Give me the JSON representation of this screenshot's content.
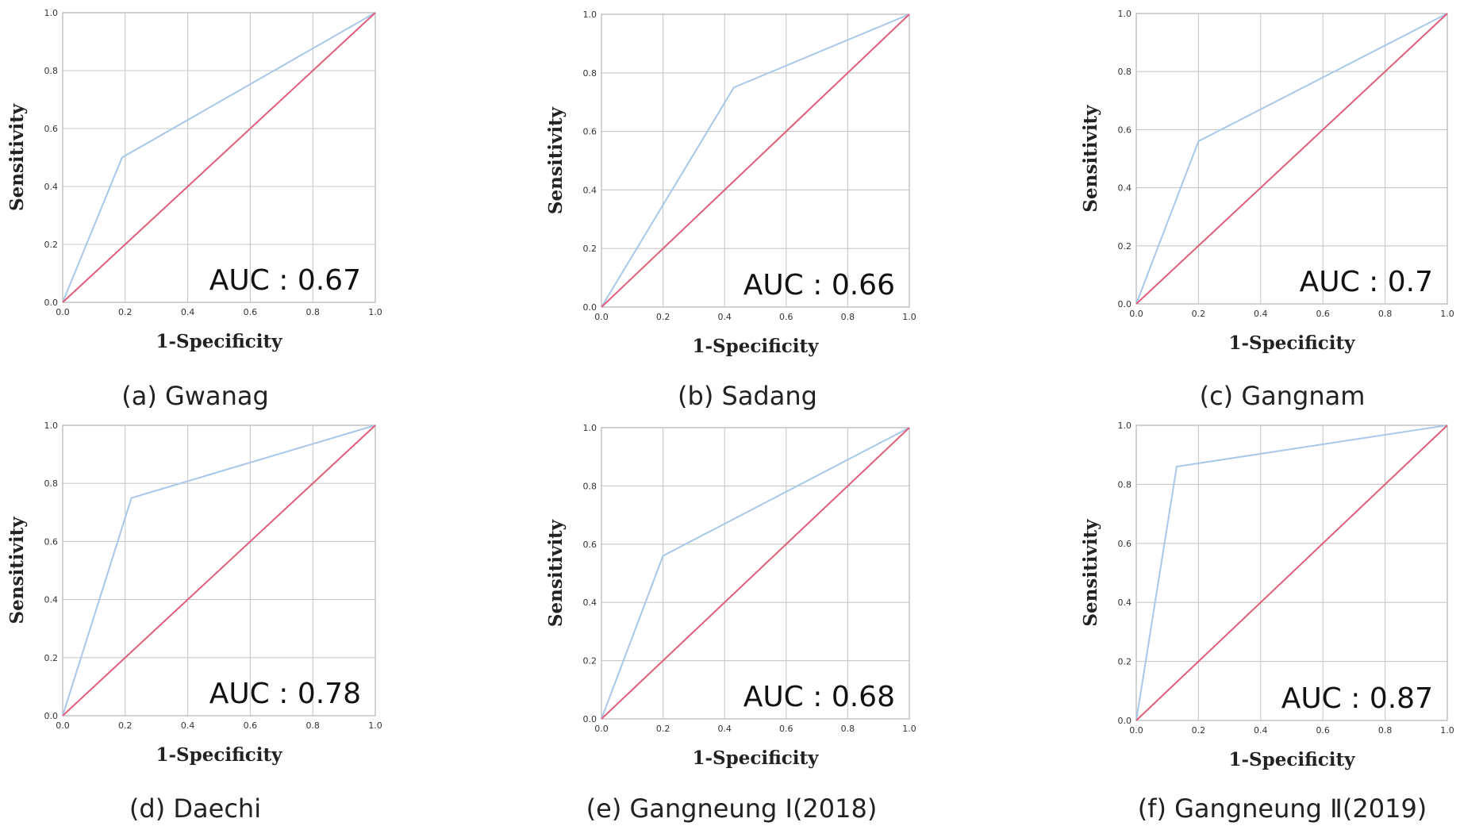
{
  "chart_data": [
    {
      "type": "line",
      "caption": "(a) Gwanag",
      "xlabel": "1-Specificity",
      "ylabel": "Sensitivity",
      "annotation": "AUC : 0.67",
      "xlim": [
        0,
        1
      ],
      "ylim": [
        0,
        1
      ],
      "ticks": [
        "0.0",
        "0.2",
        "0.4",
        "0.6",
        "0.8",
        "1.0"
      ],
      "grid": true,
      "series": [
        {
          "color": "#a8c8ea",
          "x": [
            0.0,
            0.19,
            1.0
          ],
          "y": [
            0.0,
            0.5,
            1.0
          ]
        },
        {
          "color": "#e05e7a",
          "x": [
            0.0,
            1.0
          ],
          "y": [
            0.0,
            1.0
          ]
        }
      ]
    },
    {
      "type": "line",
      "caption": "(b) Sadang",
      "xlabel": "1-Specificity",
      "ylabel": "Sensitivity",
      "annotation": "AUC : 0.66",
      "xlim": [
        0,
        1
      ],
      "ylim": [
        0,
        1
      ],
      "ticks": [
        "0.0",
        "0.2",
        "0.4",
        "0.6",
        "0.8",
        "1.0"
      ],
      "grid": true,
      "series": [
        {
          "color": "#a8c8ea",
          "x": [
            0.0,
            0.43,
            1.0
          ],
          "y": [
            0.0,
            0.75,
            1.0
          ]
        },
        {
          "color": "#e05e7a",
          "x": [
            0.0,
            1.0
          ],
          "y": [
            0.0,
            1.0
          ]
        }
      ]
    },
    {
      "type": "line",
      "caption": "(c) Gangnam",
      "xlabel": "1-Specificity",
      "ylabel": "Sensitivity",
      "annotation": "AUC : 0.7",
      "xlim": [
        0,
        1
      ],
      "ylim": [
        0,
        1
      ],
      "ticks": [
        "0.0",
        "0.2",
        "0.4",
        "0.6",
        "0.8",
        "1.0"
      ],
      "grid": true,
      "series": [
        {
          "color": "#a8c8ea",
          "x": [
            0.0,
            0.2,
            1.0
          ],
          "y": [
            0.0,
            0.56,
            1.0
          ]
        },
        {
          "color": "#e05e7a",
          "x": [
            0.0,
            1.0
          ],
          "y": [
            0.0,
            1.0
          ]
        }
      ]
    },
    {
      "type": "line",
      "caption": "(d) Daechi",
      "xlabel": "1-Specificity",
      "ylabel": "Sensitivity",
      "annotation": "AUC : 0.78",
      "xlim": [
        0,
        1
      ],
      "ylim": [
        0,
        1
      ],
      "ticks": [
        "0.0",
        "0.2",
        "0.4",
        "0.6",
        "0.8",
        "1.0"
      ],
      "grid": true,
      "series": [
        {
          "color": "#a8c8ea",
          "x": [
            0.0,
            0.22,
            1.0
          ],
          "y": [
            0.0,
            0.75,
            1.0
          ]
        },
        {
          "color": "#e05e7a",
          "x": [
            0.0,
            1.0
          ],
          "y": [
            0.0,
            1.0
          ]
        }
      ]
    },
    {
      "type": "line",
      "caption": "(e) Gangneung Ⅰ(2018)",
      "xlabel": "1-Specificity",
      "ylabel": "Sensitivity",
      "annotation": "AUC : 0.68",
      "xlim": [
        0,
        1
      ],
      "ylim": [
        0,
        1
      ],
      "ticks": [
        "0.0",
        "0.2",
        "0.4",
        "0.6",
        "0.8",
        "1.0"
      ],
      "grid": true,
      "series": [
        {
          "color": "#a8c8ea",
          "x": [
            0.0,
            0.2,
            1.0
          ],
          "y": [
            0.0,
            0.56,
            1.0
          ]
        },
        {
          "color": "#e05e7a",
          "x": [
            0.0,
            1.0
          ],
          "y": [
            0.0,
            1.0
          ]
        }
      ]
    },
    {
      "type": "line",
      "caption": "(f) Gangneung Ⅱ(2019)",
      "xlabel": "1-Specificity",
      "ylabel": "Sensitivity",
      "annotation": "AUC : 0.87",
      "xlim": [
        0,
        1
      ],
      "ylim": [
        0,
        1
      ],
      "ticks": [
        "0.0",
        "0.2",
        "0.4",
        "0.6",
        "0.8",
        "1.0"
      ],
      "grid": true,
      "series": [
        {
          "color": "#a8c8ea",
          "x": [
            0.0,
            0.13,
            1.0
          ],
          "y": [
            0.0,
            0.86,
            1.0
          ]
        },
        {
          "color": "#e05e7a",
          "x": [
            0.0,
            1.0
          ],
          "y": [
            0.0,
            1.0
          ]
        }
      ]
    }
  ]
}
